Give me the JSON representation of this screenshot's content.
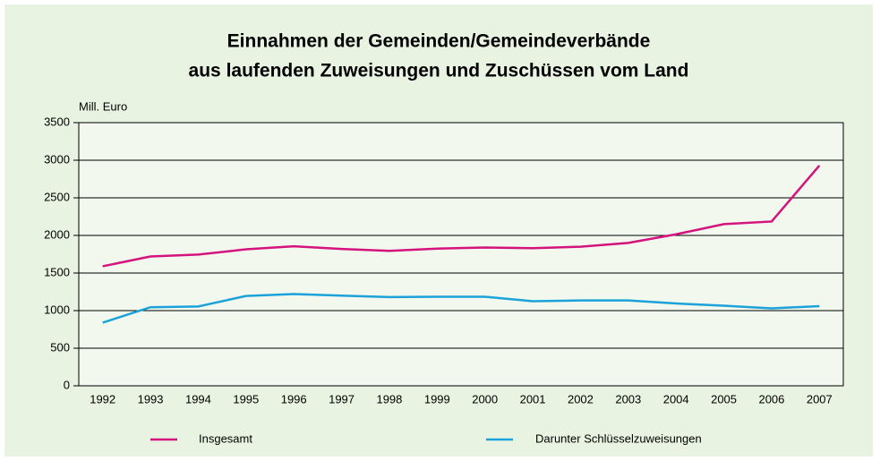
{
  "chart_data": {
    "type": "line",
    "title": [
      "Einnahmen der Gemeinden/Gemeindeverbände",
      "aus laufenden Zuweisungen und Zuschüssen vom Land"
    ],
    "y_label": "Mill. Euro",
    "categories": [
      "1992",
      "1993",
      "1994",
      "1995",
      "1996",
      "1997",
      "1998",
      "1999",
      "2000",
      "2001",
      "2002",
      "2003",
      "2004",
      "2005",
      "2006",
      "2007"
    ],
    "series": [
      {
        "name": "Insgesamt",
        "color": "#d4137d",
        "values": [
          1590,
          1720,
          1745,
          1815,
          1855,
          1820,
          1795,
          1825,
          1840,
          1830,
          1850,
          1900,
          2015,
          2150,
          2185,
          2930
        ]
      },
      {
        "name": "Darunter Schlüsselzuweisungen",
        "color": "#1ba3d9",
        "values": [
          840,
          1045,
          1055,
          1195,
          1220,
          1200,
          1180,
          1185,
          1185,
          1125,
          1135,
          1135,
          1095,
          1065,
          1030,
          1060
        ]
      }
    ],
    "ylim": [
      0,
      3500
    ],
    "yticks": [
      0,
      500,
      1000,
      1500,
      2000,
      2500,
      3000,
      3500
    ],
    "grid": true,
    "legend": "bottom"
  }
}
